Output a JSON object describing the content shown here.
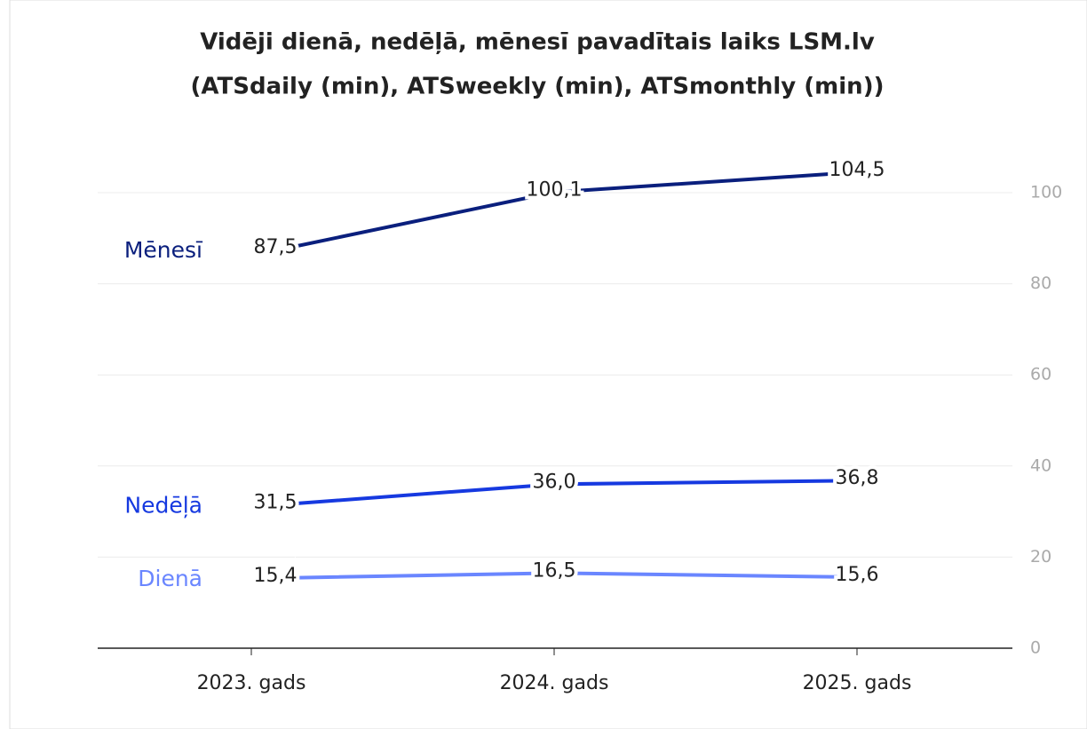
{
  "chart_data": {
    "type": "line",
    "title": [
      "Vidēji dienā, nedēļā, mēnesī pavadītais laiks LSM.lv",
      "(ATSdaily (min), ATSweekly (min), ATSmonthly (min))"
    ],
    "categories": [
      "2023. gads",
      "2024. gads",
      "2025. gads"
    ],
    "series": [
      {
        "name": "Mēnesī",
        "color": "#0a1f7d",
        "values": [
          87.5,
          100.1,
          104.5
        ],
        "value_labels": [
          "87,5",
          "100,1",
          "104,5"
        ]
      },
      {
        "name": "Nedēļā",
        "color": "#1639e0",
        "values": [
          31.5,
          36.0,
          36.8
        ],
        "value_labels": [
          "31,5",
          "36,0",
          "36,8"
        ]
      },
      {
        "name": "Dienā",
        "color": "#6a86ff",
        "values": [
          15.4,
          16.5,
          15.6
        ],
        "value_labels": [
          "15,4",
          "16,5",
          "15,6"
        ]
      }
    ],
    "ylim": [
      0,
      100
    ],
    "yticks": [
      0,
      20,
      40,
      60,
      80,
      100
    ],
    "grid": true
  }
}
